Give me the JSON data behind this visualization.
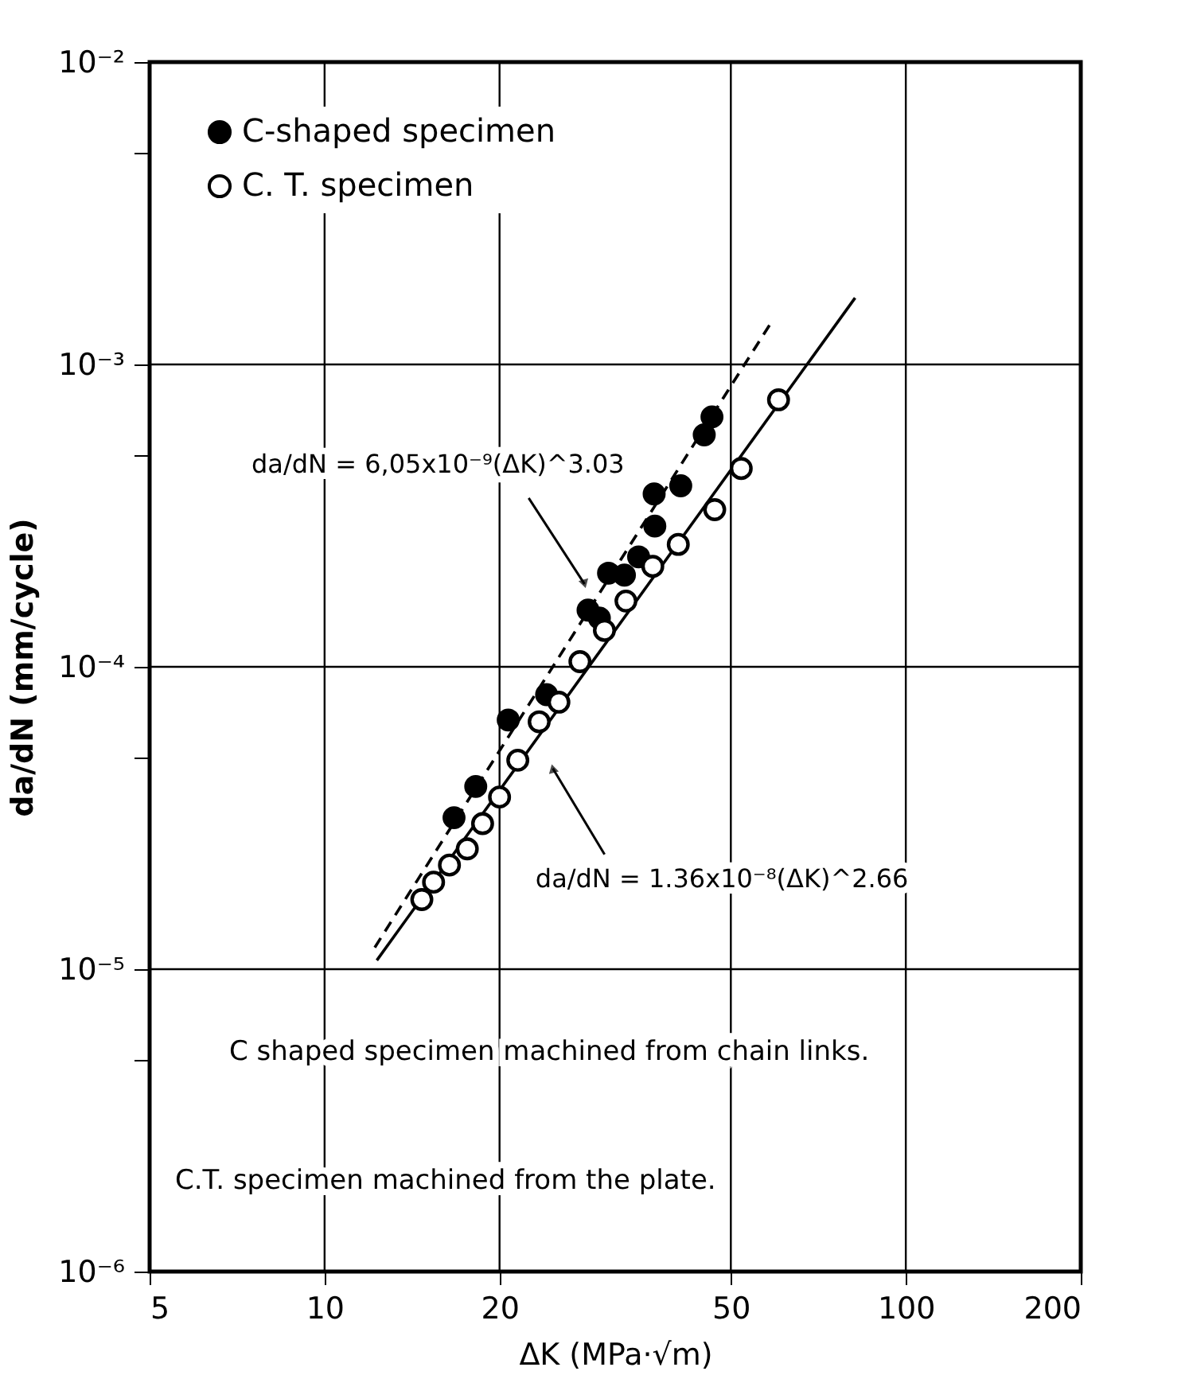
{
  "chart_data": {
    "type": "scatter",
    "xlabel": "ΔK (MPa·√m)",
    "ylabel": "da/dN (mm/cycle)",
    "log": "xy",
    "grid": true,
    "legend": "top left",
    "xlim": [
      5,
      200
    ],
    "xticks": [
      5,
      10,
      20,
      50,
      100,
      200
    ],
    "ylim": [
      1e-06,
      0.01
    ],
    "yticks": [
      {
        "value": 1e-06,
        "label": "10⁻⁶"
      },
      {
        "value": 5e-06,
        "label": null
      },
      {
        "value": 1e-05,
        "label": "10⁻⁵"
      },
      {
        "value": 5e-05,
        "label": null
      },
      {
        "value": 0.0001,
        "label": "10⁻⁴"
      },
      {
        "value": 0.0005,
        "label": null
      },
      {
        "value": 0.001,
        "label": "10⁻³"
      },
      {
        "value": 0.005,
        "label": null
      },
      {
        "value": 0.01,
        "label": "10⁻²"
      }
    ],
    "series": [
      {
        "name": "C-shaped specimen",
        "color": "#000000",
        "marker": "circle",
        "x": [
          16.7,
          18.2,
          20.7,
          24.1,
          28.4,
          29.7,
          30.8,
          32.8,
          34.7,
          37.0,
          36.9,
          41.0,
          45.0,
          46.4
        ],
        "values": [
          3.17e-05,
          4.02e-05,
          6.67e-05,
          8.09e-05,
          0.000154,
          0.000145,
          0.000204,
          0.000201,
          0.000231,
          0.000292,
          0.000373,
          0.000397,
          0.000585,
          0.000671
        ]
      },
      {
        "name": "C. T. specimen",
        "color": "#ffffff",
        "marker": "circle",
        "x": [
          14.7,
          15.4,
          16.4,
          17.6,
          18.7,
          20.0,
          21.5,
          23.4,
          25.3,
          27.5,
          30.3,
          33.0,
          36.7,
          40.6,
          46.9,
          52.1,
          60.4
        ],
        "values": [
          1.7e-05,
          1.94e-05,
          2.21e-05,
          2.5e-05,
          3.03e-05,
          3.71e-05,
          4.91e-05,
          6.58e-05,
          7.64e-05,
          0.000104,
          0.000132,
          0.000165,
          0.000215,
          0.000254,
          0.000331,
          0.000453,
          0.000764
        ]
      },
      {
        "type": "line",
        "color": "#000000",
        "line_style": "dashed",
        "x": [
          12.2,
          59.0
        ],
        "values": [
          1.18e-05,
          0.0014
        ]
      },
      {
        "type": "line",
        "color": "#000000",
        "line_style": "solid",
        "x": [
          12.3,
          81.8
        ],
        "values": [
          1.07e-05,
          0.00166
        ]
      }
    ],
    "annotations": [
      {
        "text": "da/dN = 6,05x10⁻⁹(ΔK)^3.03",
        "x": 28.0,
        "y": 0.000188
      },
      {
        "text": "da/dN = 1.36x10⁻⁸(ΔK)^2.66",
        "x": 24.7,
        "y": 4.61e-05
      },
      "C  shaped specimen machined from chain links.",
      "C.T. specimen machined from the plate."
    ]
  }
}
